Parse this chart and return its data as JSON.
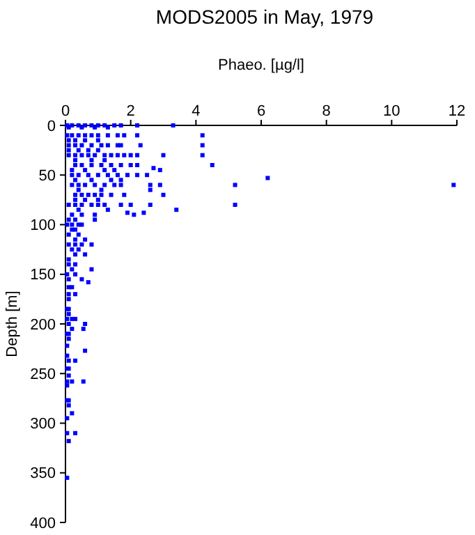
{
  "chart_data": {
    "type": "scatter",
    "title": "MODS2005 in May, 1979",
    "xlabel": "Phaeo. [µg/l]",
    "ylabel": "Depth [m]",
    "xlim": [
      0,
      12
    ],
    "xticks": [
      0,
      2,
      4,
      6,
      8,
      10,
      12
    ],
    "ylim": [
      400,
      0
    ],
    "yticks": [
      0,
      50,
      100,
      150,
      200,
      250,
      300,
      350,
      400
    ],
    "marker": "square",
    "color": "#0000ff",
    "x": [
      0.05,
      0.2,
      0.4,
      0.6,
      0.8,
      1.0,
      1.2,
      1.5,
      1.7,
      2.2,
      3.3,
      0.1,
      0.5,
      0.9,
      1.3,
      0.05,
      0.2,
      0.4,
      0.6,
      0.8,
      1.0,
      1.3,
      1.6,
      1.8,
      2.2,
      4.2,
      0.1,
      0.3,
      0.6,
      1.0,
      0.1,
      0.3,
      0.5,
      0.8,
      1.1,
      1.3,
      1.6,
      1.7,
      2.3,
      4.2,
      0.1,
      0.4,
      0.7,
      1.0,
      0.1,
      0.3,
      0.5,
      0.7,
      0.9,
      1.2,
      1.4,
      1.6,
      1.8,
      2.0,
      2.2,
      3.0,
      4.2,
      0.3,
      0.8,
      1.2,
      0.3,
      0.5,
      0.8,
      1.1,
      1.4,
      1.7,
      2.0,
      2.2,
      4.5,
      2.7,
      0.2,
      0.6,
      1.2,
      1.5,
      2.9,
      0.2,
      0.4,
      0.7,
      1.0,
      1.3,
      1.6,
      1.9,
      2.2,
      2.5,
      6.2,
      0.3,
      0.8,
      1.4,
      1.7,
      0.2,
      0.4,
      0.6,
      0.9,
      1.2,
      1.5,
      1.7,
      2.6,
      2.9,
      5.2,
      11.9,
      0.4,
      1.1,
      2.6,
      0.3,
      0.5,
      0.7,
      0.9,
      1.1,
      1.4,
      1.8,
      3.0,
      0.3,
      0.6,
      1.0,
      0.1,
      0.3,
      0.5,
      0.8,
      1.0,
      1.2,
      1.7,
      2.0,
      2.6,
      5.2,
      0.4,
      1.3,
      3.4,
      1.9,
      2.4,
      0.2,
      0.5,
      0.9,
      2.1,
      0.1,
      0.3,
      0.9,
      0.05,
      0.2,
      0.4,
      0.5,
      0.2,
      0.3,
      0.1,
      0.4,
      0.3,
      0.6,
      0.1,
      0.3,
      0.5,
      0.8,
      0.2,
      0.4,
      0.3,
      0.6,
      0.1,
      0.1,
      0.3,
      0.2,
      0.8,
      0.05,
      0.3,
      0.1,
      0.5,
      0.7,
      0.1,
      0.2,
      0.1,
      0.3,
      0.1,
      0.05,
      0.1,
      0.1,
      0.05,
      0.2,
      0.3,
      0.1,
      0.6,
      0.2,
      0.55,
      0.05,
      0.1,
      0.1,
      0.05,
      0.6,
      0.05,
      0.1,
      0.3,
      0.05,
      0.1,
      0.1,
      0.05,
      0.2,
      0.55,
      0.05,
      0.05,
      0.1,
      0.1,
      0.2,
      0.05,
      0.05,
      0.3,
      0.1,
      0.05
    ],
    "values": [
      0,
      0,
      0,
      0,
      0,
      0,
      0,
      0,
      0,
      0,
      0,
      2,
      2,
      2,
      2,
      10,
      10,
      10,
      10,
      10,
      10,
      10,
      10,
      10,
      10,
      10,
      15,
      15,
      15,
      15,
      20,
      20,
      20,
      20,
      20,
      20,
      20,
      20,
      20,
      20,
      25,
      25,
      25,
      25,
      30,
      30,
      30,
      30,
      30,
      30,
      30,
      30,
      30,
      30,
      30,
      30,
      30,
      35,
      35,
      35,
      40,
      40,
      40,
      40,
      40,
      40,
      40,
      40,
      40,
      43,
      45,
      45,
      45,
      45,
      45,
      50,
      50,
      50,
      50,
      50,
      50,
      50,
      50,
      50,
      53,
      55,
      55,
      55,
      55,
      60,
      60,
      60,
      60,
      60,
      60,
      60,
      60,
      60,
      60,
      60,
      65,
      65,
      65,
      70,
      70,
      70,
      70,
      70,
      70,
      70,
      70,
      75,
      75,
      75,
      80,
      80,
      80,
      80,
      80,
      80,
      80,
      80,
      80,
      80,
      85,
      85,
      85,
      88,
      88,
      90,
      90,
      90,
      90,
      95,
      95,
      95,
      100,
      100,
      100,
      100,
      105,
      105,
      110,
      110,
      115,
      115,
      120,
      120,
      120,
      120,
      125,
      125,
      130,
      130,
      135,
      140,
      140,
      145,
      145,
      150,
      150,
      155,
      155,
      158,
      163,
      163,
      170,
      170,
      175,
      185,
      185,
      190,
      195,
      195,
      195,
      200,
      200,
      205,
      205,
      210,
      210,
      215,
      222,
      227,
      232,
      237,
      237,
      245,
      245,
      252,
      258,
      258,
      258,
      262,
      277,
      277,
      282,
      290,
      295,
      310,
      310,
      318,
      355
    ]
  }
}
